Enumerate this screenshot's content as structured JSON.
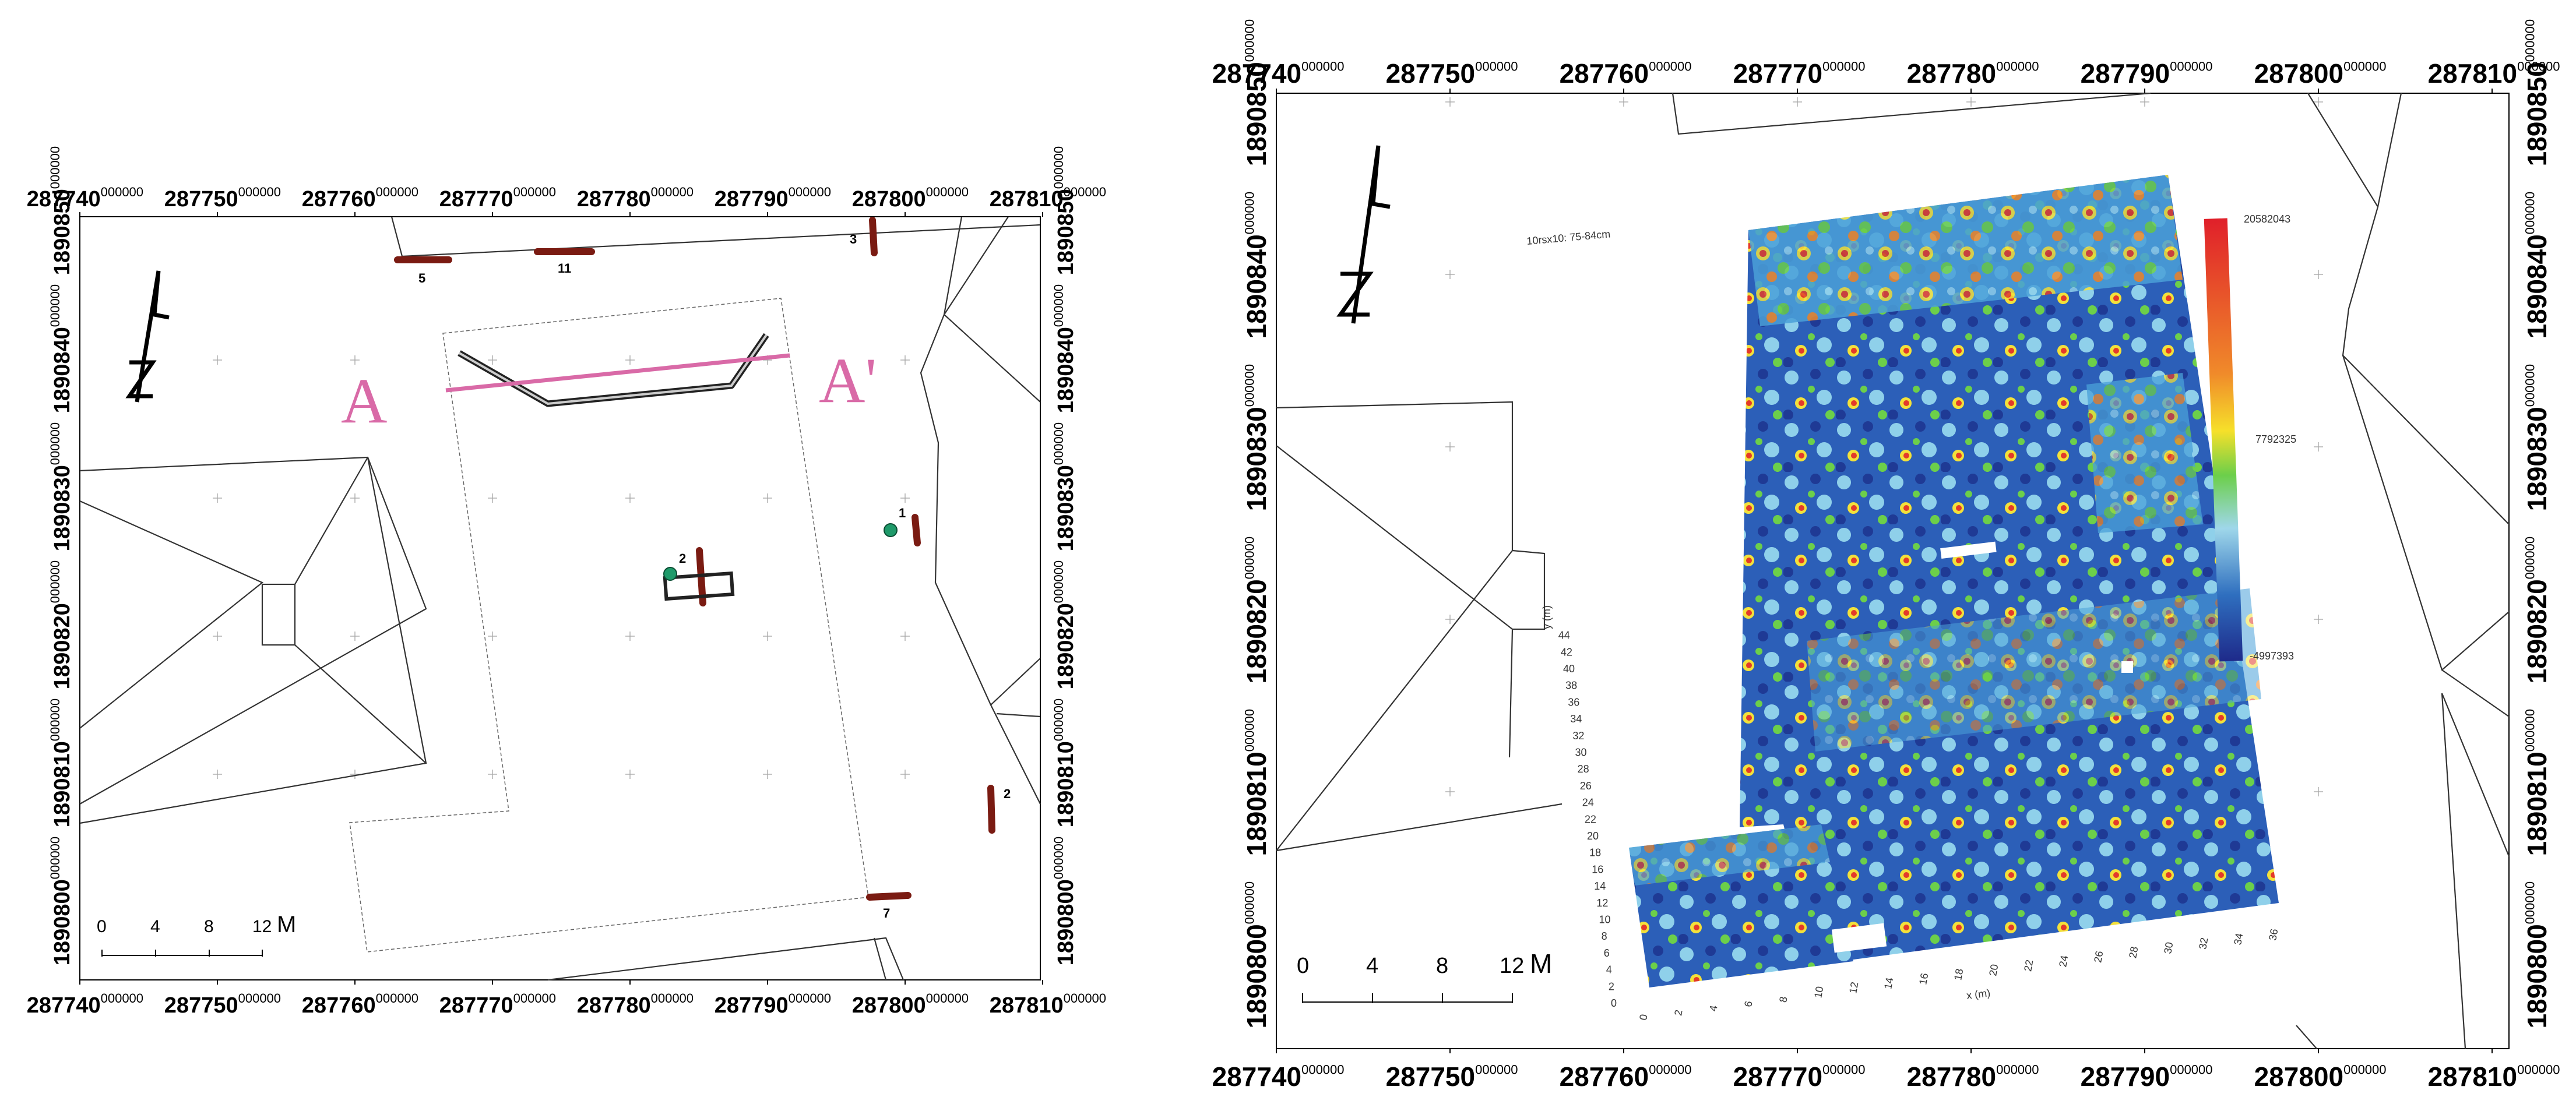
{
  "map_left": {
    "x_ticks": [
      {
        "main": "287740",
        "sup": "000000"
      },
      {
        "main": "287750",
        "sup": "000000"
      },
      {
        "main": "287760",
        "sup": "000000"
      },
      {
        "main": "287770",
        "sup": "000000"
      },
      {
        "main": "287780",
        "sup": "000000"
      },
      {
        "main": "287790",
        "sup": "000000"
      },
      {
        "main": "287800",
        "sup": "000000"
      },
      {
        "main": "287810",
        "sup": "000000"
      }
    ],
    "y_ticks": [
      {
        "main": "1890800",
        "sup": "000000"
      },
      {
        "main": "1890810",
        "sup": "000000"
      },
      {
        "main": "1890820",
        "sup": "000000"
      },
      {
        "main": "1890830",
        "sup": "000000"
      },
      {
        "main": "1890840",
        "sup": "000000"
      },
      {
        "main": "1890850",
        "sup": "000000"
      }
    ],
    "north_arrow_label": "N",
    "profile_start_label": "A",
    "profile_end_label": "A'",
    "trench_labels": [
      "5",
      "11",
      "3",
      "1",
      "2",
      "2",
      "7"
    ],
    "scale_bar": {
      "ticks": [
        "0",
        "4",
        "8",
        "12"
      ],
      "unit": "M"
    },
    "colors": {
      "trench": "#7a1b12",
      "profile": "#d96aa7",
      "marker": "#1f9a6a"
    }
  },
  "map_right": {
    "x_ticks": [
      {
        "main": "287740",
        "sup": "000000"
      },
      {
        "main": "287750",
        "sup": "000000"
      },
      {
        "main": "287760",
        "sup": "000000"
      },
      {
        "main": "287770",
        "sup": "000000"
      },
      {
        "main": "287780",
        "sup": "000000"
      },
      {
        "main": "287790",
        "sup": "000000"
      },
      {
        "main": "287800",
        "sup": "000000"
      },
      {
        "main": "287810",
        "sup": "000000"
      }
    ],
    "y_ticks": [
      {
        "main": "1890800",
        "sup": "000000"
      },
      {
        "main": "1890810",
        "sup": "000000"
      },
      {
        "main": "1890820",
        "sup": "000000"
      },
      {
        "main": "1890830",
        "sup": "000000"
      },
      {
        "main": "1890840",
        "sup": "000000"
      },
      {
        "main": "1890850",
        "sup": "000000"
      }
    ],
    "north_arrow_label": "N",
    "scale_bar": {
      "ticks": [
        "0",
        "4",
        "8",
        "12"
      ],
      "unit": "M"
    },
    "gpr_slice": {
      "title": "10rsx10: 75-84cm",
      "x_axis_label": "x (m)",
      "y_axis_label": "y (m)",
      "x_ticks": [
        "0",
        "2",
        "4",
        "6",
        "8",
        "10",
        "12",
        "14",
        "16",
        "18",
        "20",
        "22",
        "24",
        "26",
        "28",
        "30",
        "32",
        "34",
        "36"
      ],
      "y_ticks": [
        "0",
        "2",
        "4",
        "6",
        "8",
        "10",
        "12",
        "14",
        "16",
        "18",
        "20",
        "22",
        "24",
        "26",
        "28",
        "30",
        "32",
        "34",
        "36",
        "38",
        "40",
        "42",
        "44"
      ],
      "colorbar_max": "20582043",
      "colorbar_mid": "7792325",
      "colorbar_min": "-4997393"
    }
  }
}
